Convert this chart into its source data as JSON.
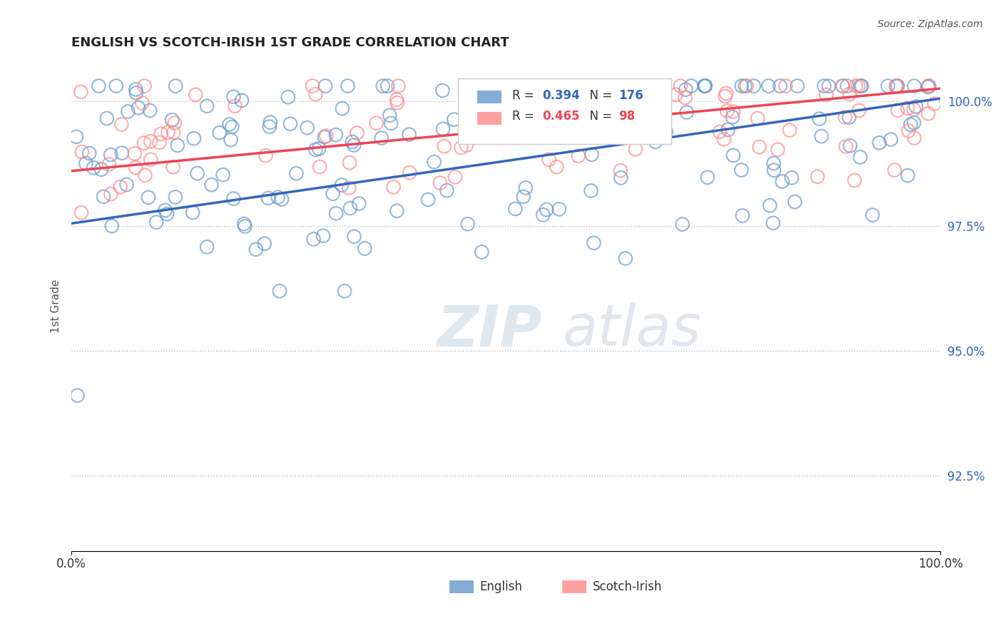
{
  "title": "ENGLISH VS SCOTCH-IRISH 1ST GRADE CORRELATION CHART",
  "source": "Source: ZipAtlas.com",
  "ylabel": "1st Grade",
  "ytick_values": [
    92.5,
    95.0,
    97.5,
    100.0
  ],
  "xmin": 0.0,
  "xmax": 100.0,
  "ymin": 91.0,
  "ymax": 100.8,
  "english_color": "#6699CC",
  "scotch_color": "#FF8888",
  "english_line_color": "#3366BB",
  "scotch_line_color": "#EE4455",
  "legend_R_english": "0.394",
  "legend_N_english": "176",
  "legend_R_scotch": "0.465",
  "legend_N_scotch": "98",
  "background_color": "#FFFFFF",
  "watermark_zip": "ZIP",
  "watermark_atlas": "atlas",
  "english_line_x0": 0.0,
  "english_line_y0": 97.55,
  "english_line_x1": 100.0,
  "english_line_y1": 100.05,
  "scotch_line_x0": 0.0,
  "scotch_line_y0": 98.6,
  "scotch_line_x1": 100.0,
  "scotch_line_y1": 100.25
}
